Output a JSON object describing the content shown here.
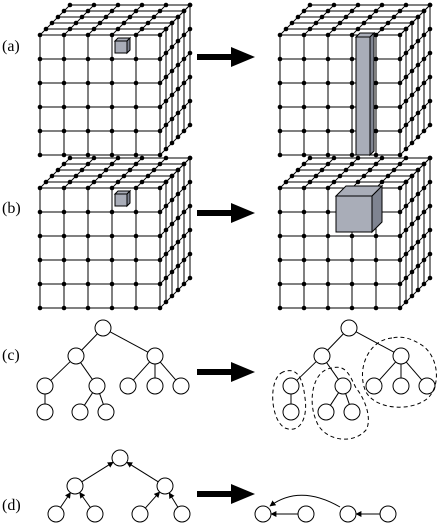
{
  "panels": [
    {
      "label": "(a)",
      "kind": "grid-cube",
      "highlight_before": "single-cell",
      "highlight_after": "column"
    },
    {
      "label": "(b)",
      "kind": "grid-cube",
      "highlight_before": "single-cell",
      "highlight_after": "block"
    },
    {
      "label": "(c)",
      "kind": "tree",
      "after": "subtrees-enclosed"
    },
    {
      "label": "(d)",
      "kind": "tree",
      "after": "linked-list"
    }
  ],
  "colors": {
    "ink": "#000000",
    "highlight_fill": "#a9adb8",
    "highlight_dark": "#7f8491",
    "node_fill": "#ffffff"
  },
  "icons": {
    "transform_arrow": "right-arrow-icon"
  }
}
